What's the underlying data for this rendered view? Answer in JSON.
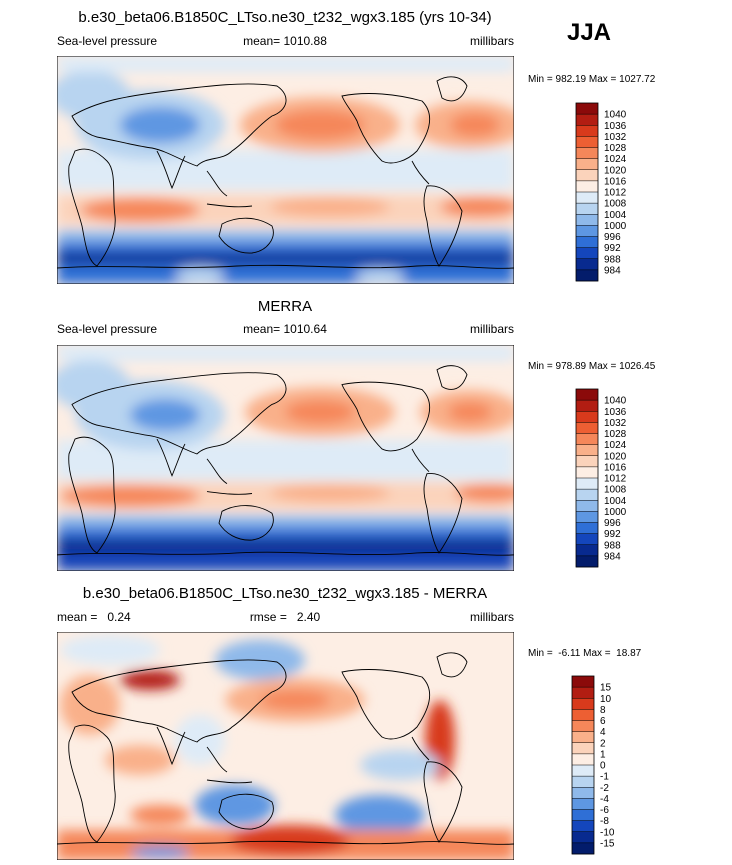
{
  "season": "JJA",
  "chart_data": [
    {
      "type": "heatmap",
      "title": "b.e30_beta06.B1850C_LTso.ne30_t232_wgx3.185 (yrs 10-34)",
      "left_label": "Sea-level pressure",
      "center_label": "mean= 1010.88",
      "units": "millibars",
      "range_text": "Min = 982.19 Max = 1027.72",
      "min": 982.19,
      "max": 1027.72,
      "mean": 1010.88,
      "colorbar_levels": [
        "1040",
        "1036",
        "1032",
        "1028",
        "1024",
        "1020",
        "1016",
        "1012",
        "1008",
        "1004",
        "1000",
        "996",
        "992",
        "988",
        "984"
      ],
      "colorbar_colors": [
        "#8b0a0a",
        "#b21d12",
        "#d83a1c",
        "#ed5f33",
        "#f5875a",
        "#f9b08a",
        "#fbd3bb",
        "#fdeee4",
        "#deebf7",
        "#b8d4f0",
        "#8fb9ea",
        "#5e97e2",
        "#2f6fd6",
        "#1446bc",
        "#082a8f",
        "#031c6b"
      ]
    },
    {
      "type": "heatmap",
      "title": "MERRA",
      "left_label": "Sea-level pressure",
      "center_label": "mean= 1010.64",
      "units": "millibars",
      "range_text": "Min = 978.89 Max = 1026.45",
      "min": 978.89,
      "max": 1026.45,
      "mean": 1010.64,
      "colorbar_levels": [
        "1040",
        "1036",
        "1032",
        "1028",
        "1024",
        "1020",
        "1016",
        "1012",
        "1008",
        "1004",
        "1000",
        "996",
        "992",
        "988",
        "984"
      ],
      "colorbar_colors": [
        "#8b0a0a",
        "#b21d12",
        "#d83a1c",
        "#ed5f33",
        "#f5875a",
        "#f9b08a",
        "#fbd3bb",
        "#fdeee4",
        "#deebf7",
        "#b8d4f0",
        "#8fb9ea",
        "#5e97e2",
        "#2f6fd6",
        "#1446bc",
        "#082a8f",
        "#031c6b"
      ]
    },
    {
      "type": "heatmap",
      "title": "b.e30_beta06.B1850C_LTso.ne30_t232_wgx3.185 - MERRA",
      "left_label": "mean =   0.24",
      "center_label": "rmse =   2.40",
      "units": "millibars",
      "range_text": "Min =  -6.11 Max =  18.87",
      "min": -6.11,
      "max": 18.87,
      "mean": 0.24,
      "rmse": 2.4,
      "colorbar_levels": [
        "15",
        "10",
        "8",
        "6",
        "4",
        "2",
        "1",
        "0",
        "-1",
        "-2",
        "-4",
        "-6",
        "-8",
        "-10",
        "-15"
      ],
      "colorbar_colors": [
        "#8b0a0a",
        "#b21d12",
        "#d83a1c",
        "#ed5f33",
        "#f5875a",
        "#f9b08a",
        "#fbd3bb",
        "#fdeee4",
        "#deebf7",
        "#b8d4f0",
        "#8fb9ea",
        "#5e97e2",
        "#2f6fd6",
        "#1446bc",
        "#082a8f",
        "#031c6b"
      ]
    }
  ]
}
